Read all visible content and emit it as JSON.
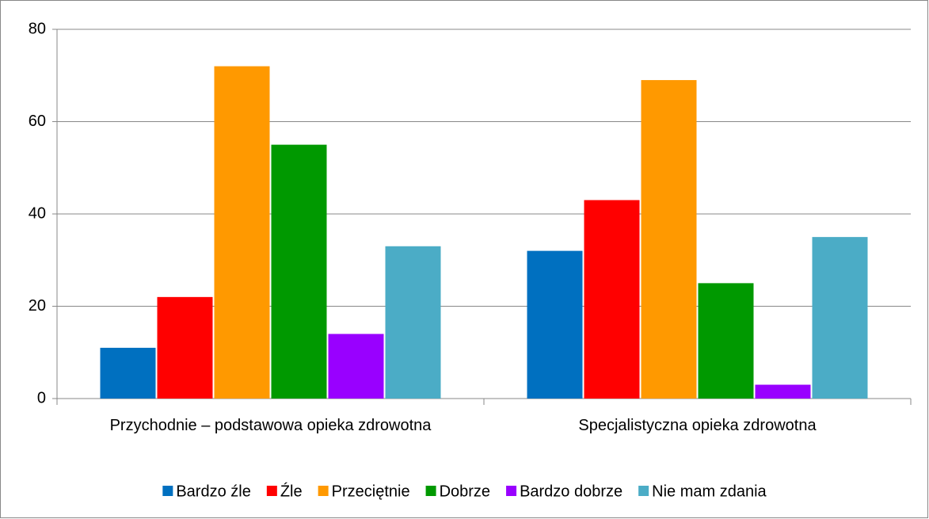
{
  "chart_data": {
    "type": "bar",
    "categories": [
      "Przychodnie – podstawowa opieka zdrowotna",
      "Specjalistyczna opieka zdrowotna"
    ],
    "series": [
      {
        "name": "Bardzo źle",
        "color": "#0070c0",
        "values": [
          11,
          32
        ]
      },
      {
        "name": "Źle",
        "color": "#ff0000",
        "values": [
          22,
          43
        ]
      },
      {
        "name": "Przeciętnie",
        "color": "#ff9900",
        "values": [
          72,
          69
        ]
      },
      {
        "name": "Dobrze",
        "color": "#009900",
        "values": [
          55,
          25
        ]
      },
      {
        "name": "Bardzo dobrze",
        "color": "#9900ff",
        "values": [
          14,
          3
        ]
      },
      {
        "name": "Nie mam zdania",
        "color": "#4bacc6",
        "values": [
          33,
          35
        ]
      }
    ],
    "ylim": [
      0,
      80
    ],
    "yticks": [
      0,
      20,
      40,
      60,
      80
    ],
    "grid": true,
    "legend": "bottom"
  }
}
